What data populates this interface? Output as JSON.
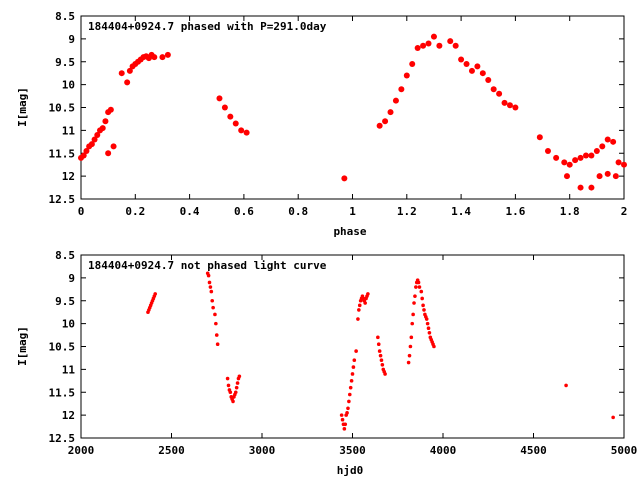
{
  "colors": {
    "points": "#ff0000",
    "axes": "#000000",
    "background": "#ffffff"
  },
  "chart_data": [
    {
      "type": "scatter",
      "title": "184404+0924.7 phased with P=291.0day",
      "xlabel": "phase",
      "ylabel": "I[mag]",
      "xlim": [
        0,
        2
      ],
      "ylim": [
        12.5,
        8.5
      ],
      "y_inverted": true,
      "grid": false,
      "x_ticks": [
        "0",
        "0.2",
        "0.4",
        "0.6",
        "0.8",
        "1",
        "1.2",
        "1.4",
        "1.6",
        "1.8",
        "2"
      ],
      "y_ticks": [
        "8.5",
        "9",
        "9.5",
        "10",
        "10.5",
        "11",
        "11.5",
        "12",
        "12.5"
      ],
      "x": [
        0.0,
        0.01,
        0.02,
        0.03,
        0.04,
        0.05,
        0.06,
        0.07,
        0.08,
        0.09,
        0.1,
        0.11,
        0.12,
        0.15,
        0.17,
        0.18,
        0.19,
        0.2,
        0.21,
        0.22,
        0.23,
        0.24,
        0.25,
        0.26,
        0.27,
        0.3,
        0.32,
        0.51,
        0.53,
        0.55,
        0.57,
        0.59,
        0.61,
        0.97,
        1.1,
        1.12,
        1.14,
        1.16,
        1.18,
        1.2,
        1.22,
        1.24,
        1.26,
        1.28,
        1.3,
        1.32,
        1.36,
        1.38,
        1.4,
        1.42,
        1.44,
        1.46,
        1.48,
        1.5,
        1.52,
        1.54,
        1.56,
        1.58,
        1.6,
        1.69,
        1.72,
        1.75,
        1.78,
        1.8,
        1.82,
        1.84,
        1.86,
        1.88,
        1.9,
        1.92,
        1.94,
        1.96,
        1.98,
        2.0,
        0.1,
        1.79,
        1.84,
        1.88,
        1.91,
        1.94,
        1.97
      ],
      "y": [
        11.6,
        11.55,
        11.45,
        11.35,
        11.3,
        11.2,
        11.1,
        11.0,
        10.95,
        10.8,
        10.6,
        10.55,
        11.35,
        9.75,
        9.95,
        9.7,
        9.6,
        9.55,
        9.5,
        9.45,
        9.4,
        9.38,
        9.42,
        9.35,
        9.4,
        9.4,
        9.35,
        10.3,
        10.5,
        10.7,
        10.85,
        11.0,
        11.05,
        12.05,
        10.9,
        10.8,
        10.6,
        10.35,
        10.1,
        9.8,
        9.55,
        9.2,
        9.15,
        9.1,
        8.95,
        9.15,
        9.05,
        9.15,
        9.45,
        9.55,
        9.7,
        9.6,
        9.75,
        9.9,
        10.1,
        10.2,
        10.4,
        10.45,
        10.5,
        11.15,
        11.45,
        11.6,
        11.7,
        11.75,
        11.65,
        11.6,
        11.55,
        11.55,
        11.45,
        11.35,
        11.2,
        11.25,
        11.7,
        11.75,
        11.5,
        12.0,
        12.25,
        12.25,
        12.0,
        11.95,
        12.0
      ]
    },
    {
      "type": "scatter",
      "title": "184404+0924.7 not phased light curve",
      "xlabel": "hjd0",
      "ylabel": "I[mag]",
      "xlim": [
        2000,
        5000
      ],
      "ylim": [
        12.5,
        8.5
      ],
      "y_inverted": true,
      "grid": false,
      "x_ticks": [
        "2000",
        "2500",
        "3000",
        "3500",
        "4000",
        "4500",
        "5000"
      ],
      "y_ticks": [
        "8.5",
        "9",
        "9.5",
        "10",
        "10.5",
        "11",
        "11.5",
        "12",
        "12.5"
      ],
      "x": [
        2370,
        2375,
        2380,
        2385,
        2390,
        2395,
        2400,
        2405,
        2410,
        2700,
        2705,
        2710,
        2715,
        2720,
        2725,
        2730,
        2740,
        2745,
        2750,
        2755,
        2810,
        2815,
        2820,
        2825,
        2830,
        2835,
        2840,
        2845,
        2850,
        2855,
        2860,
        2865,
        2870,
        2875,
        3440,
        3445,
        3450,
        3455,
        3460,
        3465,
        3470,
        3475,
        3480,
        3485,
        3490,
        3495,
        3500,
        3505,
        3510,
        3520,
        3530,
        3535,
        3540,
        3545,
        3550,
        3555,
        3560,
        3565,
        3570,
        3575,
        3580,
        3585,
        3640,
        3645,
        3650,
        3655,
        3660,
        3665,
        3670,
        3675,
        3680,
        3810,
        3815,
        3820,
        3825,
        3830,
        3835,
        3840,
        3845,
        3850,
        3855,
        3860,
        3865,
        3870,
        3880,
        3885,
        3890,
        3895,
        3900,
        3905,
        3910,
        3915,
        3920,
        3925,
        3930,
        3935,
        3940,
        3945,
        3950,
        4680,
        4940
      ],
      "y": [
        9.75,
        9.7,
        9.65,
        9.6,
        9.55,
        9.5,
        9.45,
        9.4,
        9.35,
        8.9,
        8.95,
        9.1,
        9.2,
        9.3,
        9.5,
        9.65,
        9.8,
        10.0,
        10.25,
        10.45,
        11.2,
        11.35,
        11.45,
        11.5,
        11.6,
        11.65,
        11.7,
        11.6,
        11.55,
        11.5,
        11.4,
        11.3,
        11.2,
        11.15,
        12.0,
        12.1,
        12.2,
        12.3,
        12.2,
        12.0,
        11.95,
        11.85,
        11.7,
        11.55,
        11.4,
        11.25,
        11.1,
        10.95,
        10.8,
        10.6,
        9.9,
        9.7,
        9.6,
        9.5,
        9.45,
        9.4,
        9.45,
        9.5,
        9.55,
        9.45,
        9.4,
        9.35,
        10.3,
        10.45,
        10.6,
        10.7,
        10.8,
        10.9,
        11.0,
        11.05,
        11.1,
        10.85,
        10.7,
        10.5,
        10.3,
        10.0,
        9.8,
        9.55,
        9.4,
        9.2,
        9.1,
        9.05,
        9.1,
        9.2,
        9.3,
        9.45,
        9.6,
        9.7,
        9.8,
        9.85,
        9.9,
        10.0,
        10.1,
        10.2,
        10.3,
        10.35,
        10.4,
        10.45,
        10.5,
        11.35,
        12.05
      ]
    }
  ]
}
